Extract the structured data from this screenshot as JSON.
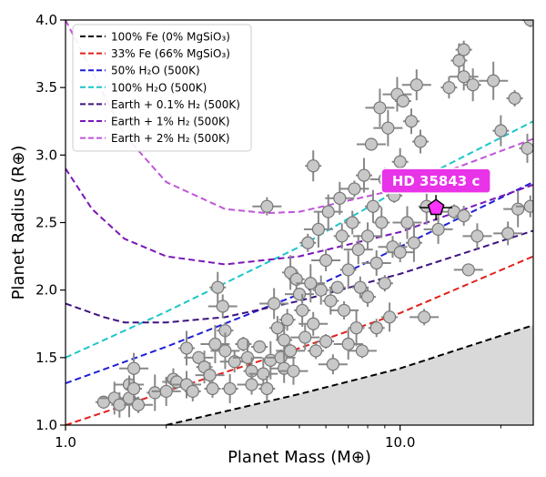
{
  "chart_data": {
    "type": "scatter",
    "xlabel": "Planet Mass (M⊕)",
    "ylabel": "Planet Radius (R⊕)",
    "xscale": "log",
    "xlim": [
      1.0,
      25.0
    ],
    "ylim": [
      1.0,
      4.0
    ],
    "x_ticks": [
      {
        "value": 1.0,
        "label": "1.0"
      },
      {
        "value": 10.0,
        "label": "10.0"
      }
    ],
    "y_ticks": [
      {
        "value": 1.0,
        "label": "1.0"
      },
      {
        "value": 1.5,
        "label": "1.5"
      },
      {
        "value": 2.0,
        "label": "2.0"
      },
      {
        "value": 2.5,
        "label": "2.5"
      },
      {
        "value": 3.0,
        "label": "3.0"
      },
      {
        "value": 3.5,
        "label": "3.5"
      },
      {
        "value": 4.0,
        "label": "4.0"
      }
    ],
    "grid": false,
    "legend_position": "top-left",
    "series": [
      {
        "name": "100% Fe (0% MgSiO₃)",
        "color": "#000000",
        "x": [
          2.0,
          5.0,
          10.0,
          25.0
        ],
        "y": [
          1.0,
          1.23,
          1.42,
          1.74
        ]
      },
      {
        "name": "33% Fe (66% MgSiO₃)",
        "color": "#e0201b",
        "x": [
          1.0,
          2.0,
          5.0,
          10.0,
          25.0
        ],
        "y": [
          1.0,
          1.25,
          1.57,
          1.83,
          2.25
        ]
      },
      {
        "name": "50% H₂O (500K)",
        "color": "#1f1fd6",
        "x": [
          1.0,
          2.0,
          5.0,
          10.0,
          25.0
        ],
        "y": [
          1.31,
          1.58,
          1.97,
          2.32,
          2.8
        ]
      },
      {
        "name": "100% H₂O (500K)",
        "color": "#1cc5c8",
        "x": [
          1.0,
          2.0,
          5.0,
          10.0,
          25.0
        ],
        "y": [
          1.5,
          1.84,
          2.32,
          2.75,
          3.25
        ]
      },
      {
        "name": "Earth + 0.1% H₂ (500K)",
        "color": "#3d1280",
        "x": [
          1.0,
          1.3,
          1.5,
          2.0,
          3.0,
          5.0,
          10.0,
          25.0
        ],
        "y": [
          1.9,
          1.8,
          1.76,
          1.76,
          1.8,
          1.92,
          2.12,
          2.44
        ]
      },
      {
        "name": "Earth + 1% H₂ (500K)",
        "color": "#7a16b8",
        "x": [
          1.0,
          1.2,
          1.5,
          2.0,
          3.0,
          5.0,
          10.0,
          25.0
        ],
        "y": [
          2.9,
          2.6,
          2.38,
          2.25,
          2.19,
          2.25,
          2.43,
          2.78
        ]
      },
      {
        "name": "Earth + 2% H₂ (500K)",
        "color": "#bf55d9",
        "x": [
          1.0,
          1.5,
          2.0,
          3.0,
          4.0,
          5.0,
          10.0,
          25.0
        ],
        "y": [
          4.0,
          3.15,
          2.8,
          2.6,
          2.57,
          2.58,
          2.75,
          3.12
        ]
      }
    ],
    "observed_planets": {
      "color": "#c8c8c8",
      "points": [
        {
          "x": 1.3,
          "y": 1.17
        },
        {
          "x": 1.4,
          "y": 1.2
        },
        {
          "x": 1.45,
          "y": 1.15
        },
        {
          "x": 1.55,
          "y": 1.3
        },
        {
          "x": 1.55,
          "y": 1.2
        },
        {
          "x": 1.6,
          "y": 1.42
        },
        {
          "x": 1.6,
          "y": 1.27
        },
        {
          "x": 1.65,
          "y": 1.15
        },
        {
          "x": 1.85,
          "y": 1.24
        },
        {
          "x": 2.0,
          "y": 1.25
        },
        {
          "x": 2.1,
          "y": 1.34
        },
        {
          "x": 2.15,
          "y": 1.32
        },
        {
          "x": 2.3,
          "y": 1.57
        },
        {
          "x": 2.3,
          "y": 1.3
        },
        {
          "x": 2.4,
          "y": 1.25
        },
        {
          "x": 2.5,
          "y": 1.5
        },
        {
          "x": 2.6,
          "y": 1.43
        },
        {
          "x": 2.7,
          "y": 1.37
        },
        {
          "x": 2.75,
          "y": 1.27
        },
        {
          "x": 2.8,
          "y": 1.6
        },
        {
          "x": 2.85,
          "y": 2.02
        },
        {
          "x": 2.95,
          "y": 1.88
        },
        {
          "x": 3.0,
          "y": 1.7
        },
        {
          "x": 3.0,
          "y": 1.55
        },
        {
          "x": 3.1,
          "y": 1.27
        },
        {
          "x": 3.2,
          "y": 1.47
        },
        {
          "x": 3.4,
          "y": 1.6
        },
        {
          "x": 3.5,
          "y": 1.5
        },
        {
          "x": 3.6,
          "y": 1.4
        },
        {
          "x": 3.6,
          "y": 1.3
        },
        {
          "x": 3.8,
          "y": 1.58
        },
        {
          "x": 3.9,
          "y": 1.38
        },
        {
          "x": 4.0,
          "y": 1.27
        },
        {
          "x": 4.0,
          "y": 2.62
        },
        {
          "x": 4.1,
          "y": 1.48
        },
        {
          "x": 4.2,
          "y": 1.9
        },
        {
          "x": 4.3,
          "y": 1.72
        },
        {
          "x": 4.4,
          "y": 1.5
        },
        {
          "x": 4.5,
          "y": 1.63
        },
        {
          "x": 4.5,
          "y": 1.42
        },
        {
          "x": 4.6,
          "y": 1.78
        },
        {
          "x": 4.7,
          "y": 1.55
        },
        {
          "x": 4.7,
          "y": 2.13
        },
        {
          "x": 4.8,
          "y": 1.4
        },
        {
          "x": 4.9,
          "y": 2.08
        },
        {
          "x": 5.0,
          "y": 1.97
        },
        {
          "x": 5.1,
          "y": 1.85
        },
        {
          "x": 5.2,
          "y": 1.65
        },
        {
          "x": 5.3,
          "y": 2.35
        },
        {
          "x": 5.4,
          "y": 2.05
        },
        {
          "x": 5.5,
          "y": 2.92
        },
        {
          "x": 5.5,
          "y": 1.75
        },
        {
          "x": 5.6,
          "y": 1.55
        },
        {
          "x": 5.7,
          "y": 2.45
        },
        {
          "x": 5.8,
          "y": 2.0
        },
        {
          "x": 6.0,
          "y": 2.22
        },
        {
          "x": 6.0,
          "y": 1.62
        },
        {
          "x": 6.1,
          "y": 2.58
        },
        {
          "x": 6.2,
          "y": 1.92
        },
        {
          "x": 6.3,
          "y": 1.45
        },
        {
          "x": 6.5,
          "y": 2.02
        },
        {
          "x": 6.6,
          "y": 2.68
        },
        {
          "x": 6.7,
          "y": 2.4
        },
        {
          "x": 6.8,
          "y": 1.85
        },
        {
          "x": 7.0,
          "y": 2.15
        },
        {
          "x": 7.0,
          "y": 1.6
        },
        {
          "x": 7.2,
          "y": 2.5
        },
        {
          "x": 7.3,
          "y": 2.75
        },
        {
          "x": 7.4,
          "y": 1.72
        },
        {
          "x": 7.5,
          "y": 2.3
        },
        {
          "x": 7.6,
          "y": 2.02
        },
        {
          "x": 7.7,
          "y": 1.55
        },
        {
          "x": 7.8,
          "y": 2.85
        },
        {
          "x": 8.0,
          "y": 2.4
        },
        {
          "x": 8.0,
          "y": 1.95
        },
        {
          "x": 8.2,
          "y": 3.08
        },
        {
          "x": 8.3,
          "y": 2.62
        },
        {
          "x": 8.5,
          "y": 2.2
        },
        {
          "x": 8.5,
          "y": 1.72
        },
        {
          "x": 8.7,
          "y": 3.35
        },
        {
          "x": 8.8,
          "y": 2.5
        },
        {
          "x": 9.0,
          "y": 2.82
        },
        {
          "x": 9.0,
          "y": 2.05
        },
        {
          "x": 9.2,
          "y": 3.2
        },
        {
          "x": 9.3,
          "y": 1.8
        },
        {
          "x": 9.5,
          "y": 2.32
        },
        {
          "x": 9.6,
          "y": 2.7
        },
        {
          "x": 9.8,
          "y": 3.45
        },
        {
          "x": 10.0,
          "y": 2.95
        },
        {
          "x": 10.0,
          "y": 2.28
        },
        {
          "x": 10.2,
          "y": 3.4
        },
        {
          "x": 10.5,
          "y": 2.5
        },
        {
          "x": 10.8,
          "y": 3.25
        },
        {
          "x": 11.0,
          "y": 2.78
        },
        {
          "x": 11.0,
          "y": 2.35
        },
        {
          "x": 11.2,
          "y": 3.52
        },
        {
          "x": 11.5,
          "y": 3.1
        },
        {
          "x": 11.8,
          "y": 1.8
        },
        {
          "x": 12.0,
          "y": 2.62
        },
        {
          "x": 13.0,
          "y": 2.45
        },
        {
          "x": 14.0,
          "y": 3.5
        },
        {
          "x": 14.5,
          "y": 2.58
        },
        {
          "x": 15.0,
          "y": 3.7
        },
        {
          "x": 15.5,
          "y": 3.58
        },
        {
          "x": 15.5,
          "y": 2.55
        },
        {
          "x": 16.0,
          "y": 2.15
        },
        {
          "x": 16.5,
          "y": 3.52
        },
        {
          "x": 17.0,
          "y": 2.4
        },
        {
          "x": 15.5,
          "y": 3.78
        },
        {
          "x": 19.0,
          "y": 3.55
        },
        {
          "x": 20.0,
          "y": 3.18
        },
        {
          "x": 21.0,
          "y": 2.42
        },
        {
          "x": 22.0,
          "y": 3.42
        },
        {
          "x": 22.5,
          "y": 2.6
        },
        {
          "x": 24.0,
          "y": 3.05
        },
        {
          "x": 24.5,
          "y": 2.62
        },
        {
          "x": 24.5,
          "y": 4.0
        }
      ]
    },
    "highlight": {
      "label": "HD 35843 c",
      "x": 12.8,
      "y": 2.61,
      "color": "#ff33ff",
      "label_bg": "#e833e8"
    },
    "shaded_region": {
      "color": "#d9d9d9",
      "bounded_by": "100% Fe (0% MgSiO₃)"
    }
  }
}
